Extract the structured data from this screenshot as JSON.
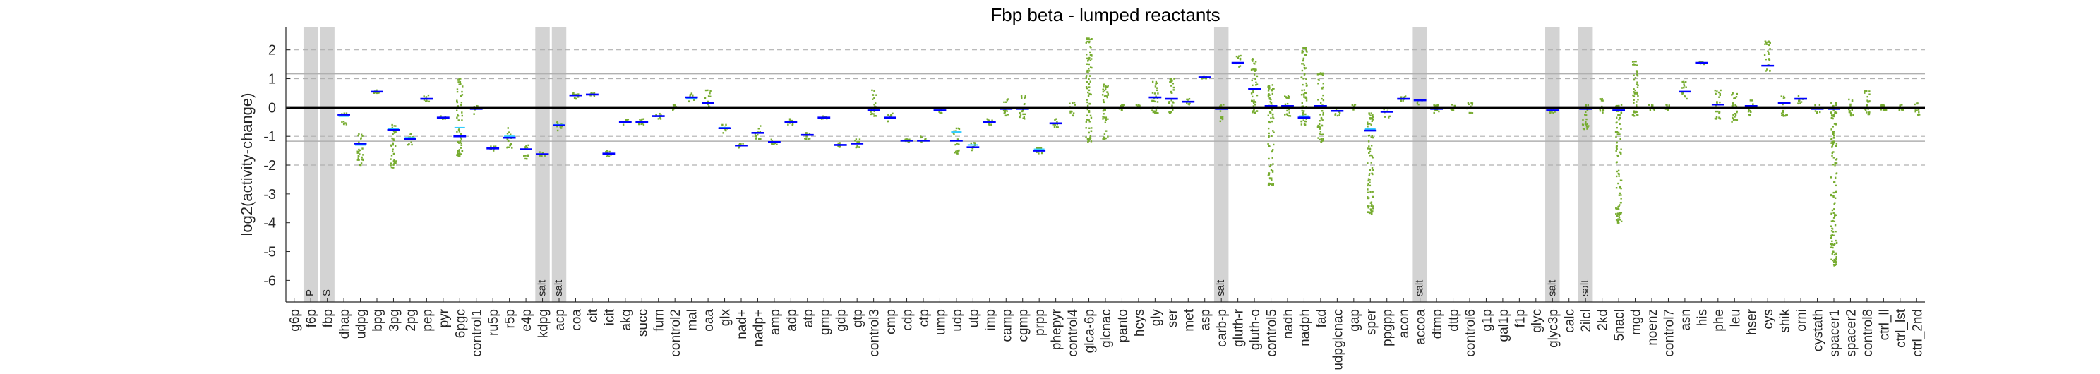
{
  "chart_data": {
    "type": "scatter",
    "title": "Fbp beta - lumped reactants",
    "ylabel": "log2(activity-change)",
    "xlabel": "",
    "ylim": [
      -6.75,
      2.8
    ],
    "yticks": [
      -6,
      -5,
      -4,
      -3,
      -2,
      -1,
      0,
      1,
      2
    ],
    "solid_grid_y": [
      -1.17,
      1.17
    ],
    "dashed_grid_y": [
      -2,
      -1,
      1,
      2
    ],
    "zero_line": 0,
    "grid": true,
    "colors": {
      "shade": "#d3d3d3",
      "median": "#0000ff",
      "mean": "#33ccff",
      "points": "#77ac30",
      "zero_line": "#000000"
    },
    "categories": [
      "g6p",
      "f6p",
      "fbp",
      "dhap",
      "udpg",
      "bpg",
      "3pg",
      "2pg",
      "pep",
      "pyr",
      "6pgc",
      "control1",
      "ru5p",
      "r5p",
      "e4p",
      "kdpg",
      "acp",
      "coa",
      "cit",
      "icit",
      "akg",
      "succ",
      "fum",
      "control2",
      "mal",
      "oaa",
      "glx",
      "nad+",
      "nadp+",
      "amp",
      "adp",
      "atp",
      "gmp",
      "gdp",
      "gtp",
      "control3",
      "cmp",
      "cdp",
      "ctp",
      "ump",
      "udp",
      "utp",
      "imp",
      "camp",
      "cgmp",
      "prpp",
      "phepyr",
      "control4",
      "glca-6p",
      "glcnac",
      "panto",
      "hcys",
      "gly",
      "ser",
      "met",
      "asp",
      "carb-p",
      "gluth-r",
      "gluth-o",
      "control5",
      "nadh",
      "nadph",
      "fad",
      "udpglcnac",
      "gap",
      "sper",
      "ppgpp",
      "acon",
      "accoa",
      "dtmp",
      "dttp",
      "control6",
      "g1p",
      "gal1p",
      "f1p",
      "glyc",
      "glyc3p",
      "calc",
      "2ilcl",
      "2kd",
      "5nacl",
      "mgd",
      "noenz",
      "control7",
      "asn",
      "his",
      "phe",
      "leu",
      "hser",
      "cys",
      "shik",
      "orni",
      "cystath",
      "spacer1",
      "spacer2",
      "control8",
      "ctrl_ll",
      "ctrl_lst",
      "ctrl_2nd"
    ],
    "shaded_categories": [
      {
        "category": "f6p",
        "label": "P"
      },
      {
        "category": "fbp",
        "label": "S"
      },
      {
        "category": "kdpg",
        "label": "salt"
      },
      {
        "category": "acp",
        "label": "salt"
      },
      {
        "category": "carb-p",
        "label": "salt"
      },
      {
        "category": "accoa",
        "label": "salt"
      },
      {
        "category": "glyc3p",
        "label": "salt"
      },
      {
        "category": "2ilcl",
        "label": "salt"
      }
    ],
    "series": [
      {
        "name": "median",
        "values": [
          null,
          null,
          null,
          -0.25,
          -1.25,
          0.55,
          -0.78,
          -1.1,
          0.3,
          -0.35,
          -1.0,
          -0.05,
          -1.42,
          -1.05,
          -1.45,
          -1.62,
          -0.62,
          0.42,
          0.45,
          -1.6,
          -0.5,
          -0.5,
          -0.3,
          0.0,
          0.35,
          0.15,
          -0.72,
          -1.32,
          -0.88,
          -1.2,
          -0.5,
          -0.95,
          -0.35,
          -1.3,
          -1.25,
          -0.1,
          -0.35,
          -1.15,
          -1.15,
          -0.1,
          -1.15,
          -1.38,
          -0.5,
          -0.05,
          -0.05,
          -1.5,
          -0.55,
          0.0,
          0.0,
          0.0,
          0.0,
          0.0,
          0.35,
          0.3,
          0.2,
          1.05,
          -0.05,
          1.55,
          0.65,
          0.05,
          0.05,
          -0.35,
          0.05,
          -0.12,
          0.0,
          -0.8,
          -0.15,
          0.3,
          0.25,
          -0.05,
          0.0,
          0.0,
          null,
          null,
          null,
          null,
          -0.1,
          null,
          -0.05,
          0.0,
          -0.1,
          0.0,
          0.0,
          0.0,
          0.55,
          1.55,
          0.1,
          0.0,
          0.05,
          1.45,
          0.15,
          0.3,
          -0.05,
          -0.05,
          0.0,
          0.0,
          0.0,
          0.0,
          0.0
        ]
      },
      {
        "name": "mean",
        "values": [
          null,
          null,
          null,
          -0.3,
          -1.3,
          0.55,
          -0.75,
          -1.05,
          0.3,
          -0.35,
          -0.7,
          -0.05,
          -1.42,
          -1.0,
          -1.45,
          -1.62,
          -0.6,
          0.42,
          0.45,
          -1.6,
          -0.5,
          -0.5,
          -0.3,
          0.0,
          0.3,
          0.15,
          -0.7,
          -1.32,
          -0.88,
          -1.2,
          -0.5,
          -0.95,
          -0.35,
          -1.3,
          -1.25,
          -0.1,
          -0.35,
          -1.15,
          -1.15,
          -0.1,
          -0.85,
          -1.3,
          -0.5,
          -0.05,
          -0.05,
          -1.45,
          -0.55,
          0.0,
          0.0,
          0.0,
          0.0,
          0.0,
          0.35,
          0.3,
          0.2,
          1.05,
          -0.05,
          1.55,
          0.65,
          0.05,
          0.05,
          -0.3,
          0.05,
          -0.12,
          0.0,
          -0.75,
          -0.15,
          0.3,
          0.25,
          -0.05,
          0.0,
          0.0,
          null,
          null,
          null,
          null,
          -0.1,
          null,
          -0.05,
          0.0,
          -0.1,
          0.0,
          0.0,
          0.0,
          0.55,
          1.55,
          0.1,
          0.0,
          0.05,
          1.45,
          0.15,
          0.3,
          -0.05,
          -0.05,
          0.0,
          0.0,
          0.0,
          0.0,
          0.0
        ]
      },
      {
        "name": "points",
        "values": [
          null,
          null,
          null,
          [
            -0.6,
            -0.2
          ],
          [
            -2.0,
            -0.9
          ],
          [
            0.5,
            0.6
          ],
          [
            -2.1,
            -0.6
          ],
          [
            -1.3,
            -0.9
          ],
          [
            0.2,
            0.45
          ],
          [
            -0.4,
            -0.3
          ],
          [
            -1.7,
            1.0
          ],
          [
            -0.3,
            0.1
          ],
          [
            -1.5,
            -1.35
          ],
          [
            -1.4,
            -0.7
          ],
          [
            -1.8,
            -1.3
          ],
          [
            -1.7,
            -1.55
          ],
          [
            -0.8,
            -0.5
          ],
          [
            0.3,
            0.5
          ],
          [
            0.4,
            0.5
          ],
          [
            -1.7,
            -1.5
          ],
          [
            -0.6,
            -0.4
          ],
          [
            -0.6,
            -0.4
          ],
          [
            -0.4,
            -0.2
          ],
          [
            -0.1,
            0.1
          ],
          [
            0.2,
            0.5
          ],
          [
            0.0,
            0.6
          ],
          [
            -0.9,
            -0.6
          ],
          [
            -1.4,
            -1.25
          ],
          [
            -1.1,
            -0.6
          ],
          [
            -1.3,
            -1.1
          ],
          [
            -0.6,
            -0.4
          ],
          [
            -1.1,
            -0.85
          ],
          [
            -0.4,
            -0.3
          ],
          [
            -1.4,
            -1.2
          ],
          [
            -1.4,
            -1.1
          ],
          [
            -0.3,
            0.6
          ],
          [
            -0.5,
            -0.2
          ],
          [
            -1.2,
            -1.1
          ],
          [
            -1.2,
            -1.0
          ],
          [
            -0.2,
            0.0
          ],
          [
            -1.6,
            -0.7
          ],
          [
            -1.5,
            -1.2
          ],
          [
            -0.6,
            -0.4
          ],
          [
            -0.3,
            0.3
          ],
          [
            -0.4,
            0.4
          ],
          [
            -1.6,
            -1.4
          ],
          [
            -0.7,
            -0.4
          ],
          [
            -0.3,
            0.2
          ],
          [
            -1.2,
            2.4
          ],
          [
            -1.1,
            0.8
          ],
          [
            -0.1,
            0.1
          ],
          [
            -0.1,
            0.1
          ],
          [
            -0.2,
            0.9
          ],
          [
            -0.2,
            1.0
          ],
          [
            0.1,
            0.3
          ],
          [
            1.0,
            1.1
          ],
          [
            -0.5,
            0.1
          ],
          [
            1.4,
            1.8
          ],
          [
            -0.2,
            1.7
          ],
          [
            -2.7,
            0.8
          ],
          [
            -0.3,
            0.4
          ],
          [
            -0.6,
            2.1
          ],
          [
            -1.2,
            1.2
          ],
          [
            -0.3,
            0.0
          ],
          [
            -0.1,
            0.1
          ],
          [
            -3.7,
            -0.2
          ],
          [
            -0.4,
            0.0
          ],
          [
            0.2,
            0.4
          ],
          [
            0.1,
            0.3
          ],
          [
            -0.2,
            0.1
          ],
          [
            -0.1,
            0.1
          ],
          [
            -0.2,
            0.2
          ],
          null,
          null,
          null,
          null,
          [
            -0.2,
            0.0
          ],
          null,
          [
            -0.8,
            0.1
          ],
          [
            -0.2,
            0.3
          ],
          [
            -4.0,
            0.1
          ],
          [
            -0.3,
            1.6
          ],
          [
            -0.1,
            0.1
          ],
          [
            -0.1,
            0.1
          ],
          [
            0.3,
            0.9
          ],
          [
            1.5,
            1.6
          ],
          [
            -0.4,
            0.6
          ],
          [
            -0.5,
            0.5
          ],
          [
            -0.3,
            0.3
          ],
          [
            1.2,
            2.3
          ],
          [
            -0.3,
            0.4
          ],
          [
            0.1,
            0.4
          ],
          [
            -0.2,
            0.1
          ],
          [
            -5.5,
            0.2
          ],
          [
            -0.3,
            0.3
          ],
          [
            -0.3,
            0.6
          ],
          [
            -0.1,
            0.1
          ],
          [
            -0.1,
            0.1
          ],
          [
            -0.3,
            0.2
          ]
        ]
      }
    ]
  }
}
